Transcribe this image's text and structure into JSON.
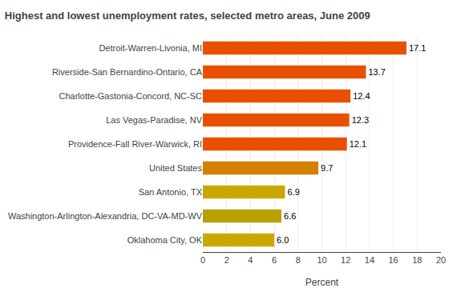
{
  "chart_data": {
    "type": "bar",
    "orientation": "horizontal",
    "title": "Highest and lowest unemployment rates, selected metro areas, June 2009",
    "x_label": "Percent",
    "categories": [
      "Detroit-Warren-Livonia, MI",
      "Riverside-San Bernardino-Ontario, CA",
      "Charlotte-Gastonia-Concord, NC-SC",
      "Las Vegas-Paradise, NV",
      "Providence-Fall River-Warwick, RI",
      "United States",
      "San Antonio, TX",
      "Washington-Arlington-Alexandria, DC-VA-MD-WV",
      "Oklahoma City, OK"
    ],
    "values": [
      17.1,
      13.7,
      12.4,
      12.3,
      12.1,
      9.7,
      6.9,
      6.6,
      6.0
    ],
    "value_labels": [
      "17.1",
      "13.7",
      "12.4",
      "12.3",
      "12.1",
      "9.7",
      "6.9",
      "6.6",
      "6.0"
    ],
    "colors": [
      "#E85000",
      "#E85000",
      "#E85000",
      "#E85000",
      "#E85000",
      "#D48000",
      "#C8A800",
      "#B8A000",
      "#C8A800"
    ],
    "xlim": [
      0,
      20
    ],
    "xticks": [
      0,
      2,
      4,
      6,
      8,
      10,
      12,
      14,
      16,
      18,
      20
    ],
    "grid": true,
    "data_labels": true
  }
}
